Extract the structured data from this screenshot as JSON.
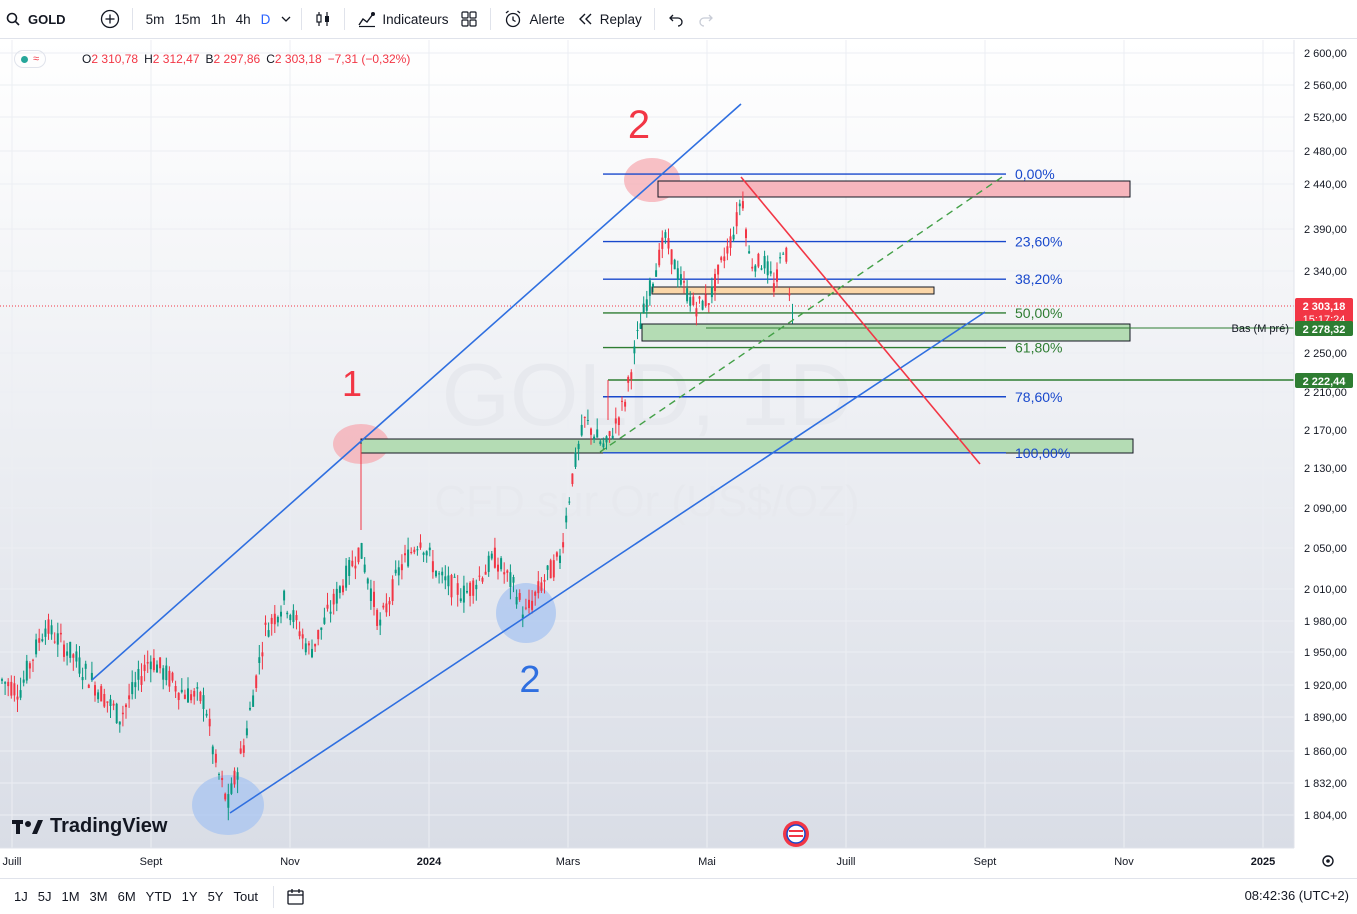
{
  "toolbar": {
    "symbol": "GOLD",
    "timeframes": [
      "5m",
      "15m",
      "1h",
      "4h",
      "D"
    ],
    "indicators_label": "Indicateurs",
    "alert_label": "Alerte",
    "replay_label": "Replay"
  },
  "legend": {
    "o_key": "O",
    "o_val": "2 310,78",
    "h_key": "H",
    "h_val": "2 312,47",
    "b_key": "B",
    "b_val": "2 297,86",
    "c_key": "C",
    "c_val": "2 303,18",
    "change": "−7,31 (−0,32%)"
  },
  "watermark": {
    "title": "GOLD, 1D",
    "subtitle": "CFD sur Or (US$/OZ)"
  },
  "price_axis": {
    "ticks": [
      {
        "label": "2 600,00",
        "v": 2600
      },
      {
        "label": "2 560,00",
        "v": 2560
      },
      {
        "label": "2 520,00",
        "v": 2520
      },
      {
        "label": "2 480,00",
        "v": 2480
      },
      {
        "label": "2 440,00",
        "v": 2440
      },
      {
        "label": "2 390,00",
        "v": 2390
      },
      {
        "label": "2 340,00",
        "v": 2340
      },
      {
        "label": "2 250,00",
        "v": 2250
      },
      {
        "label": "2 210,00",
        "v": 2210
      },
      {
        "label": "2 170,00",
        "v": 2170
      },
      {
        "label": "2 130,00",
        "v": 2130
      },
      {
        "label": "2 090,00",
        "v": 2090
      },
      {
        "label": "2 050,00",
        "v": 2050
      },
      {
        "label": "2 010,00",
        "v": 2010
      },
      {
        "label": "1 980,00",
        "v": 1980
      },
      {
        "label": "1 950,00",
        "v": 1950
      },
      {
        "label": "1 920,00",
        "v": 1920
      },
      {
        "label": "1 890,00",
        "v": 1890
      },
      {
        "label": "1 860,00",
        "v": 1860
      },
      {
        "label": "1 832,00",
        "v": 1832
      },
      {
        "label": "1 804,00",
        "v": 1804
      }
    ],
    "current_price": "2 303,18",
    "countdown": "15:17:24",
    "low_tag": "2 278,32",
    "line_tag": "2 222,44",
    "low_label": "Bas (M pré)"
  },
  "time_axis": {
    "labels": [
      {
        "label": "Juill",
        "m": 0
      },
      {
        "label": "Sept",
        "m": 2
      },
      {
        "label": "Nov",
        "m": 4
      },
      {
        "label": "2024",
        "m": 6
      },
      {
        "label": "Mars",
        "m": 8
      },
      {
        "label": "Mai",
        "m": 10
      },
      {
        "label": "Juill",
        "m": 12
      },
      {
        "label": "Sept",
        "m": 14
      },
      {
        "label": "Nov",
        "m": 16
      },
      {
        "label": "2025",
        "m": 18
      }
    ]
  },
  "fib": {
    "levels": [
      {
        "label": "0,00%",
        "price": 2452
      },
      {
        "label": "23,60%",
        "price": 2375
      },
      {
        "label": "38,20%",
        "price": 2331
      },
      {
        "label": "50,00%",
        "price": 2294
      },
      {
        "label": "61,80%",
        "price": 2256
      },
      {
        "label": "78,60%",
        "price": 2205
      },
      {
        "label": "100,00%",
        "price": 2146
      }
    ],
    "colors": [
      "#1848cc",
      "#1848cc",
      "#1848cc",
      "#2e7d32",
      "#2e7d32",
      "#1848cc",
      "#1848cc"
    ]
  },
  "annotations": {
    "wave_a": "1",
    "wave_b": "2",
    "wave_c": "2"
  },
  "brand": {
    "name": "TradingView"
  },
  "bottom": {
    "ranges": [
      "1J",
      "5J",
      "1M",
      "3M",
      "6M",
      "YTD",
      "1Y",
      "5Y",
      "Tout"
    ],
    "clock": "08:42:36 (UTC+2)"
  },
  "colors": {
    "up": "#089981",
    "down": "#f23645",
    "fibblue": "#1848cc",
    "trend": "#2f6fe0"
  }
}
